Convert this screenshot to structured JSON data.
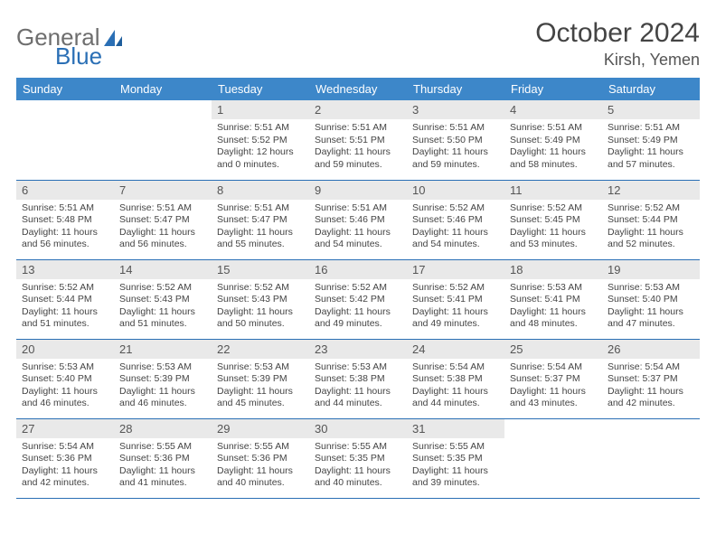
{
  "logo": {
    "text1": "General",
    "text2": "Blue"
  },
  "title": "October 2024",
  "location": "Kirsh, Yemen",
  "colors": {
    "header_bg": "#3d87c9",
    "header_text": "#ffffff",
    "daynum_bg": "#e9e9e9",
    "border": "#2a6fb5",
    "text": "#444444",
    "logo_accent": "#2a6fb5"
  },
  "weekdays": [
    "Sunday",
    "Monday",
    "Tuesday",
    "Wednesday",
    "Thursday",
    "Friday",
    "Saturday"
  ],
  "first_weekday_index": 2,
  "days": [
    {
      "n": 1,
      "sr": "5:51 AM",
      "ss": "5:52 PM",
      "dh": 12,
      "dm": 0
    },
    {
      "n": 2,
      "sr": "5:51 AM",
      "ss": "5:51 PM",
      "dh": 11,
      "dm": 59
    },
    {
      "n": 3,
      "sr": "5:51 AM",
      "ss": "5:50 PM",
      "dh": 11,
      "dm": 59
    },
    {
      "n": 4,
      "sr": "5:51 AM",
      "ss": "5:49 PM",
      "dh": 11,
      "dm": 58
    },
    {
      "n": 5,
      "sr": "5:51 AM",
      "ss": "5:49 PM",
      "dh": 11,
      "dm": 57
    },
    {
      "n": 6,
      "sr": "5:51 AM",
      "ss": "5:48 PM",
      "dh": 11,
      "dm": 56
    },
    {
      "n": 7,
      "sr": "5:51 AM",
      "ss": "5:47 PM",
      "dh": 11,
      "dm": 56
    },
    {
      "n": 8,
      "sr": "5:51 AM",
      "ss": "5:47 PM",
      "dh": 11,
      "dm": 55
    },
    {
      "n": 9,
      "sr": "5:51 AM",
      "ss": "5:46 PM",
      "dh": 11,
      "dm": 54
    },
    {
      "n": 10,
      "sr": "5:52 AM",
      "ss": "5:46 PM",
      "dh": 11,
      "dm": 54
    },
    {
      "n": 11,
      "sr": "5:52 AM",
      "ss": "5:45 PM",
      "dh": 11,
      "dm": 53
    },
    {
      "n": 12,
      "sr": "5:52 AM",
      "ss": "5:44 PM",
      "dh": 11,
      "dm": 52
    },
    {
      "n": 13,
      "sr": "5:52 AM",
      "ss": "5:44 PM",
      "dh": 11,
      "dm": 51
    },
    {
      "n": 14,
      "sr": "5:52 AM",
      "ss": "5:43 PM",
      "dh": 11,
      "dm": 51
    },
    {
      "n": 15,
      "sr": "5:52 AM",
      "ss": "5:43 PM",
      "dh": 11,
      "dm": 50
    },
    {
      "n": 16,
      "sr": "5:52 AM",
      "ss": "5:42 PM",
      "dh": 11,
      "dm": 49
    },
    {
      "n": 17,
      "sr": "5:52 AM",
      "ss": "5:41 PM",
      "dh": 11,
      "dm": 49
    },
    {
      "n": 18,
      "sr": "5:53 AM",
      "ss": "5:41 PM",
      "dh": 11,
      "dm": 48
    },
    {
      "n": 19,
      "sr": "5:53 AM",
      "ss": "5:40 PM",
      "dh": 11,
      "dm": 47
    },
    {
      "n": 20,
      "sr": "5:53 AM",
      "ss": "5:40 PM",
      "dh": 11,
      "dm": 46
    },
    {
      "n": 21,
      "sr": "5:53 AM",
      "ss": "5:39 PM",
      "dh": 11,
      "dm": 46
    },
    {
      "n": 22,
      "sr": "5:53 AM",
      "ss": "5:39 PM",
      "dh": 11,
      "dm": 45
    },
    {
      "n": 23,
      "sr": "5:53 AM",
      "ss": "5:38 PM",
      "dh": 11,
      "dm": 44
    },
    {
      "n": 24,
      "sr": "5:54 AM",
      "ss": "5:38 PM",
      "dh": 11,
      "dm": 44
    },
    {
      "n": 25,
      "sr": "5:54 AM",
      "ss": "5:37 PM",
      "dh": 11,
      "dm": 43
    },
    {
      "n": 26,
      "sr": "5:54 AM",
      "ss": "5:37 PM",
      "dh": 11,
      "dm": 42
    },
    {
      "n": 27,
      "sr": "5:54 AM",
      "ss": "5:36 PM",
      "dh": 11,
      "dm": 42
    },
    {
      "n": 28,
      "sr": "5:55 AM",
      "ss": "5:36 PM",
      "dh": 11,
      "dm": 41
    },
    {
      "n": 29,
      "sr": "5:55 AM",
      "ss": "5:36 PM",
      "dh": 11,
      "dm": 40
    },
    {
      "n": 30,
      "sr": "5:55 AM",
      "ss": "5:35 PM",
      "dh": 11,
      "dm": 40
    },
    {
      "n": 31,
      "sr": "5:55 AM",
      "ss": "5:35 PM",
      "dh": 11,
      "dm": 39
    }
  ],
  "labels": {
    "sunrise": "Sunrise:",
    "sunset": "Sunset:",
    "daylight": "Daylight:",
    "hours": "hours",
    "and": "and",
    "minutes": "minutes."
  }
}
